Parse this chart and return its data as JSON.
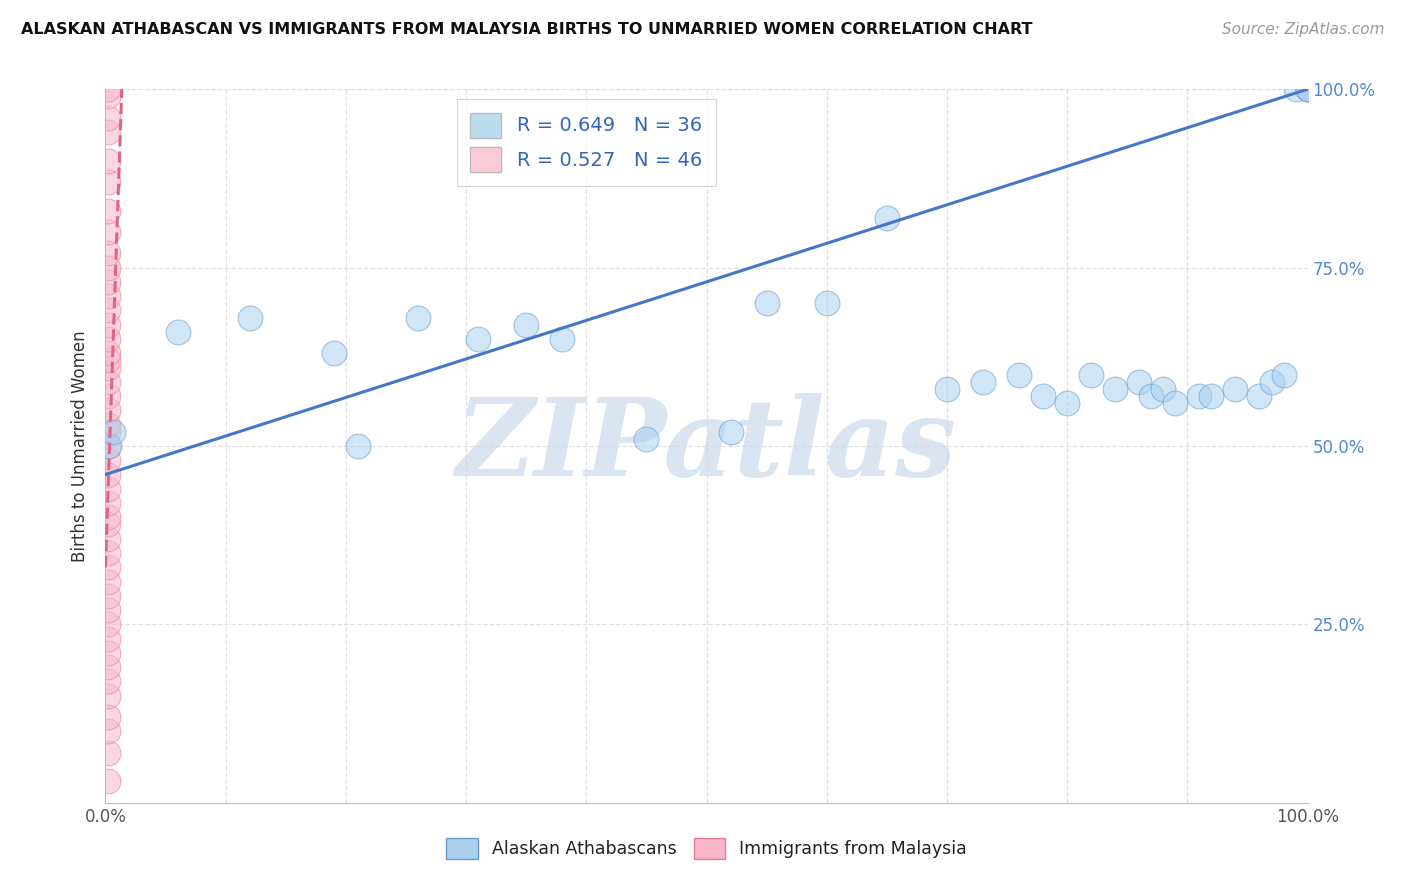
{
  "title": "ALASKAN ATHABASCAN VS IMMIGRANTS FROM MALAYSIA BIRTHS TO UNMARRIED WOMEN CORRELATION CHART",
  "source": "Source: ZipAtlas.com",
  "watermark": "ZIPatlas",
  "ylabel": "Births to Unmarried Women",
  "r_blue": 0.649,
  "n_blue": 36,
  "r_pink": 0.527,
  "n_pink": 46,
  "blue_fill": "#AAD0EE",
  "pink_fill": "#F8B8CA",
  "blue_edge": "#6699CC",
  "pink_edge": "#EE7799",
  "trendline_blue": "#4477CC",
  "trendline_pink": "#DD6688",
  "legend_box_blue": "#BBDDF0",
  "legend_box_pink": "#FBCCD8",
  "blue_x": [
    0.003,
    0.006,
    0.06,
    0.12,
    0.19,
    0.21,
    0.26,
    0.31,
    0.35,
    0.38,
    0.45,
    0.52,
    0.55,
    0.6,
    0.65,
    0.7,
    0.73,
    0.76,
    0.78,
    0.8,
    0.82,
    0.84,
    0.86,
    0.87,
    0.88,
    0.89,
    0.91,
    0.92,
    0.94,
    0.96,
    0.97,
    0.98,
    0.99,
    1.0,
    1.0,
    1.0
  ],
  "blue_y": [
    0.5,
    0.52,
    0.66,
    0.68,
    0.63,
    0.5,
    0.68,
    0.65,
    0.67,
    0.65,
    0.51,
    0.52,
    0.7,
    0.7,
    0.82,
    0.58,
    0.59,
    0.6,
    0.57,
    0.56,
    0.6,
    0.58,
    0.59,
    0.57,
    0.58,
    0.56,
    0.57,
    0.57,
    0.58,
    0.57,
    0.59,
    0.6,
    1.0,
    1.0,
    1.0,
    1.0
  ],
  "pink_x": [
    0.002,
    0.002,
    0.002,
    0.002,
    0.002,
    0.002,
    0.002,
    0.002,
    0.002,
    0.002,
    0.002,
    0.002,
    0.002,
    0.002,
    0.002,
    0.002,
    0.002,
    0.002,
    0.002,
    0.002,
    0.002,
    0.002,
    0.002,
    0.002,
    0.002,
    0.002,
    0.002,
    0.002,
    0.002,
    0.002,
    0.002,
    0.002,
    0.002,
    0.002,
    0.002,
    0.002,
    0.002,
    0.002,
    0.002,
    0.002,
    0.002,
    0.002,
    0.002,
    0.002,
    0.002,
    0.002
  ],
  "pink_y": [
    0.03,
    0.07,
    0.1,
    0.12,
    0.15,
    0.17,
    0.19,
    0.21,
    0.23,
    0.25,
    0.27,
    0.29,
    0.31,
    0.33,
    0.35,
    0.37,
    0.39,
    0.4,
    0.42,
    0.44,
    0.46,
    0.48,
    0.5,
    0.52,
    0.53,
    0.55,
    0.57,
    0.59,
    0.61,
    0.62,
    0.63,
    0.65,
    0.67,
    0.69,
    0.71,
    0.73,
    0.75,
    0.77,
    0.8,
    0.83,
    0.87,
    0.9,
    0.94,
    0.96,
    0.99,
    1.0
  ],
  "blue_trend_x0": 0.0,
  "blue_trend_y0": 0.46,
  "blue_trend_x1": 1.0,
  "blue_trend_y1": 1.0,
  "pink_trend_x0": 0.0,
  "pink_trend_y0": 0.33,
  "pink_trend_x1": 0.014,
  "pink_trend_y1": 1.02,
  "xlim": [
    0.0,
    1.0
  ],
  "ylim": [
    0.0,
    1.0
  ],
  "background_color": "#FFFFFF",
  "grid_color": "#E0E0E0",
  "right_tick_color": "#5588CC",
  "title_color": "#111111",
  "source_color": "#999999",
  "ylabel_color": "#333333"
}
